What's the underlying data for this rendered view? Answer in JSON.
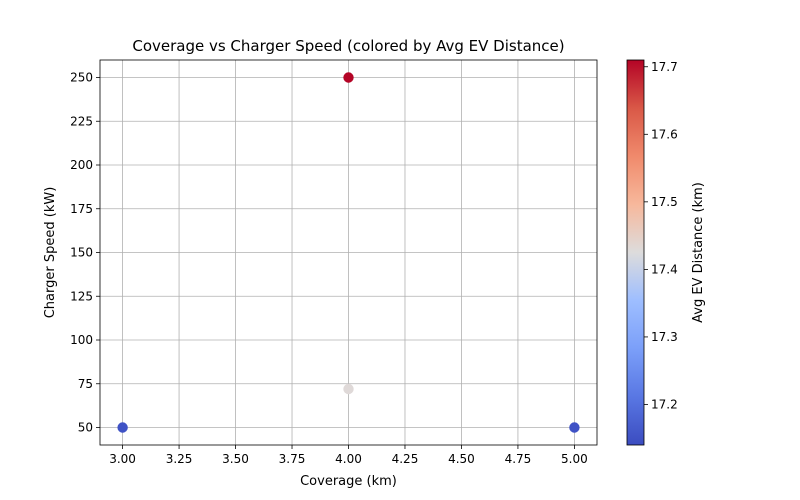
{
  "chart_data": {
    "type": "scatter",
    "title": "Coverage vs Charger Speed (colored by Avg EV Distance)",
    "xlabel": "Coverage (km)",
    "ylabel": "Charger Speed (kW)",
    "xlim": [
      2.9,
      5.1
    ],
    "ylim": [
      40,
      260
    ],
    "xticks": [
      3.0,
      3.25,
      3.5,
      3.75,
      4.0,
      4.25,
      4.5,
      4.75,
      5.0
    ],
    "xtick_labels": [
      "3.00",
      "3.25",
      "3.50",
      "3.75",
      "4.00",
      "4.25",
      "4.50",
      "4.75",
      "5.00"
    ],
    "yticks": [
      50,
      75,
      100,
      125,
      150,
      175,
      200,
      225,
      250
    ],
    "ytick_labels": [
      "50",
      "75",
      "100",
      "125",
      "150",
      "175",
      "200",
      "225",
      "250"
    ],
    "grid": true,
    "colormap": "coolwarm",
    "points": [
      {
        "x": 3.0,
        "y": 50,
        "c": 17.15
      },
      {
        "x": 4.0,
        "y": 250,
        "c": 17.71
      },
      {
        "x": 4.0,
        "y": 72,
        "c": 17.43
      },
      {
        "x": 5.0,
        "y": 50,
        "c": 17.15
      }
    ],
    "colorbar": {
      "label": "Avg EV Distance (km)",
      "range": [
        17.14,
        17.71
      ],
      "ticks": [
        17.2,
        17.3,
        17.4,
        17.5,
        17.6,
        17.7
      ],
      "tick_labels": [
        "17.2",
        "17.3",
        "17.4",
        "17.5",
        "17.6",
        "17.7"
      ]
    }
  }
}
